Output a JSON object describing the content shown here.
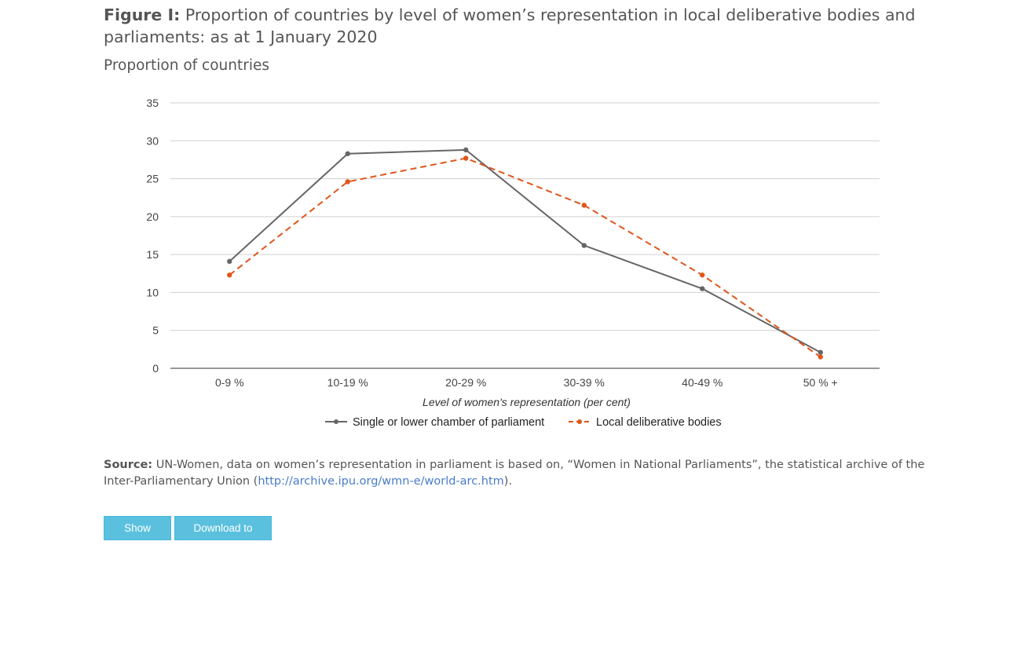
{
  "figure": {
    "label": "Figure I:",
    "title": "Proportion of countries by level of women’s representation in local deliberative bodies and parliaments: as at 1 January 2020"
  },
  "chart_data": {
    "type": "line",
    "title": "Figure I: Proportion of countries by level of women’s representation in local deliberative bodies and parliaments: as at 1 January 2020",
    "ylabel": "Proportion of countries",
    "xlabel": "Level of women's representation (per cent)",
    "categories": [
      "0-9 %",
      "10-19 %",
      "20-29 %",
      "30-39 %",
      "40-49 %",
      "50 % +"
    ],
    "ylim": [
      0,
      35
    ],
    "yticks": [
      0,
      5,
      10,
      15,
      20,
      25,
      30,
      35
    ],
    "grid": true,
    "legend_position": "bottom-center",
    "series": [
      {
        "name": "Single or lower chamber of parliament",
        "values": [
          14.1,
          28.3,
          28.8,
          16.2,
          10.5,
          2.1
        ],
        "color": "#666666",
        "style": "solid"
      },
      {
        "name": "Local deliberative bodies",
        "values": [
          12.3,
          24.6,
          27.7,
          21.5,
          12.3,
          1.5
        ],
        "color": "#e0561b",
        "style": "dashed"
      }
    ]
  },
  "source": {
    "label": "Source:",
    "text_before": " UN-Women, data on women’s representation in parliament is based on, “Women in National Parliaments”, the statistical archive of the Inter-Parliamentary Union (",
    "link": "http://archive.ipu.org/wmn-e/world-arc.htm",
    "text_after": ")."
  },
  "buttons": {
    "show_data": "Show Data",
    "download_csv": "Download to CSV"
  }
}
